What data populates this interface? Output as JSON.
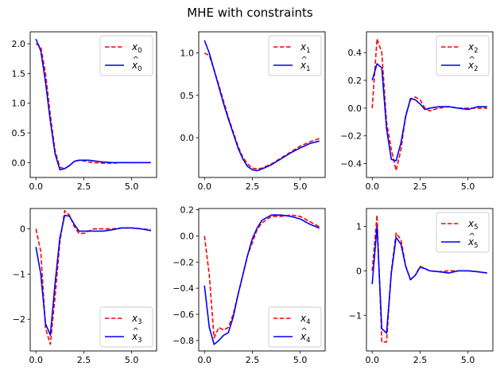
{
  "title": "MHE with constraints",
  "colors": {
    "true_state": "#ff0000",
    "estimate": "#0000ff",
    "axes": "#000000"
  },
  "chart_data": [
    {
      "type": "line",
      "legend": "top-right",
      "grid": false,
      "xlim": [
        -0.3,
        6.3
      ],
      "ylim": [
        -0.25,
        2.2
      ],
      "xticks": [
        0,
        2.5,
        5
      ],
      "xtick_labels": [
        "0.0",
        "2.5",
        "5.0"
      ],
      "yticks": [
        0,
        0.5,
        1,
        1.5,
        2
      ],
      "ytick_labels": [
        "0.0",
        "0.5",
        "1.0",
        "1.5",
        "2.0"
      ],
      "series": [
        {
          "name": "x_0",
          "legend_label": "x",
          "legend_sub": "0",
          "hat": false,
          "style": "dashed",
          "color": "#ff0000",
          "x": [
            0,
            0.25,
            0.5,
            0.75,
            1.0,
            1.25,
            1.5,
            1.75,
            2.0,
            2.25,
            2.5,
            2.75,
            3.0,
            3.5,
            4.0,
            4.5,
            5.0,
            5.5,
            6.0
          ],
          "y": [
            2.0,
            1.95,
            1.5,
            0.8,
            0.2,
            -0.08,
            -0.1,
            -0.05,
            0.02,
            0.04,
            0.03,
            0.01,
            0.0,
            -0.01,
            -0.01,
            0.0,
            0.0,
            0.0,
            0.0
          ]
        },
        {
          "name": "x_0_hat",
          "legend_label": "x",
          "legend_sub": "0",
          "hat": true,
          "style": "solid",
          "color": "#0000ff",
          "x": [
            0,
            0.25,
            0.5,
            0.75,
            1.0,
            1.25,
            1.5,
            1.75,
            2.0,
            2.25,
            2.5,
            2.75,
            3.0,
            3.5,
            4.0,
            4.5,
            5.0,
            5.5,
            6.0
          ],
          "y": [
            2.08,
            1.88,
            1.35,
            0.7,
            0.15,
            -0.12,
            -0.1,
            -0.05,
            0.02,
            0.04,
            0.04,
            0.04,
            0.03,
            0.01,
            0.0,
            0.0,
            0.0,
            0.0,
            0.0
          ]
        }
      ]
    },
    {
      "type": "line",
      "legend": "top-right",
      "grid": false,
      "xlim": [
        -0.3,
        6.3
      ],
      "ylim": [
        -0.47,
        1.25
      ],
      "xticks": [
        0,
        2.5,
        5
      ],
      "xtick_labels": [
        "0.0",
        "2.5",
        "5.0"
      ],
      "yticks": [
        0,
        0.5,
        1
      ],
      "ytick_labels": [
        "0.0",
        "0.5",
        "1.0"
      ],
      "series": [
        {
          "name": "x_1",
          "legend_label": "x",
          "legend_sub": "1",
          "hat": false,
          "style": "dashed",
          "color": "#ff0000",
          "x": [
            0,
            0.25,
            0.5,
            0.75,
            1.0,
            1.25,
            1.5,
            1.75,
            2.0,
            2.25,
            2.5,
            2.75,
            3.0,
            3.5,
            4.0,
            4.5,
            5.0,
            5.5,
            6.0
          ],
          "y": [
            1.0,
            0.97,
            0.8,
            0.62,
            0.43,
            0.24,
            0.07,
            -0.1,
            -0.23,
            -0.31,
            -0.36,
            -0.37,
            -0.36,
            -0.31,
            -0.24,
            -0.17,
            -0.1,
            -0.05,
            -0.01
          ]
        },
        {
          "name": "x_1_hat",
          "legend_label": "x",
          "legend_sub": "1",
          "hat": true,
          "style": "solid",
          "color": "#0000ff",
          "x": [
            0,
            0.25,
            0.5,
            0.75,
            1.0,
            1.25,
            1.5,
            1.75,
            2.0,
            2.25,
            2.5,
            2.75,
            3.0,
            3.5,
            4.0,
            4.5,
            5.0,
            5.5,
            6.0
          ],
          "y": [
            1.15,
            1.0,
            0.8,
            0.6,
            0.4,
            0.22,
            0.05,
            -0.12,
            -0.25,
            -0.34,
            -0.38,
            -0.39,
            -0.37,
            -0.32,
            -0.25,
            -0.18,
            -0.12,
            -0.07,
            -0.04
          ]
        }
      ]
    },
    {
      "type": "line",
      "legend": "top-right",
      "grid": false,
      "xlim": [
        -0.3,
        6.3
      ],
      "ylim": [
        -0.5,
        0.55
      ],
      "xticks": [
        0,
        2.5,
        5
      ],
      "xtick_labels": [
        "0.0",
        "2.5",
        "5.0"
      ],
      "yticks": [
        -0.4,
        -0.2,
        0,
        0.2,
        0.4
      ],
      "ytick_labels": [
        "−0.4",
        "−0.2",
        "0.0",
        "0.2",
        "0.4"
      ],
      "series": [
        {
          "name": "x_2",
          "legend_label": "x",
          "legend_sub": "2",
          "hat": false,
          "style": "dashed",
          "color": "#ff0000",
          "x": [
            0,
            0.25,
            0.5,
            0.75,
            1.0,
            1.25,
            1.5,
            1.75,
            2.0,
            2.25,
            2.5,
            2.75,
            3.0,
            3.5,
            4.0,
            4.5,
            5.0,
            5.5,
            6.0
          ],
          "y": [
            0.0,
            0.5,
            0.4,
            -0.1,
            -0.3,
            -0.45,
            -0.3,
            -0.05,
            0.06,
            0.08,
            0.06,
            0.0,
            -0.02,
            0.0,
            0.01,
            0.0,
            0.0,
            0.0,
            0.0
          ]
        },
        {
          "name": "x_2_hat",
          "legend_label": "x",
          "legend_sub": "2",
          "hat": true,
          "style": "solid",
          "color": "#0000ff",
          "x": [
            0,
            0.25,
            0.5,
            0.75,
            1.0,
            1.25,
            1.5,
            1.75,
            2.0,
            2.25,
            2.5,
            2.75,
            3.0,
            3.5,
            4.0,
            4.5,
            5.0,
            5.5,
            6.0
          ],
          "y": [
            0.2,
            0.32,
            0.29,
            -0.15,
            -0.37,
            -0.38,
            -0.25,
            -0.06,
            0.07,
            0.06,
            0.03,
            -0.01,
            0.0,
            0.01,
            0.01,
            0.0,
            -0.01,
            0.01,
            0.01
          ]
        }
      ]
    },
    {
      "type": "line",
      "legend": "lower-right",
      "grid": false,
      "xlim": [
        -0.3,
        6.3
      ],
      "ylim": [
        -2.7,
        0.45
      ],
      "xticks": [
        0,
        2.5,
        5
      ],
      "xtick_labels": [
        "0.0",
        "2.5",
        "5.0"
      ],
      "yticks": [
        -2,
        -1,
        0
      ],
      "ytick_labels": [
        "−2",
        "−1",
        "0"
      ],
      "series": [
        {
          "name": "x_3",
          "legend_label": "x",
          "legend_sub": "3",
          "hat": false,
          "style": "dashed",
          "color": "#ff0000",
          "x": [
            0,
            0.25,
            0.5,
            0.75,
            1.0,
            1.25,
            1.5,
            1.75,
            2.0,
            2.25,
            2.5,
            2.75,
            3.0,
            3.5,
            4.0,
            4.5,
            5.0,
            5.5,
            6.0
          ],
          "y": [
            0.0,
            -0.5,
            -2.2,
            -2.55,
            -1.5,
            -0.3,
            0.4,
            0.3,
            0.05,
            -0.1,
            -0.1,
            -0.05,
            0.0,
            0.0,
            0.0,
            0.02,
            0.02,
            0.0,
            -0.02
          ]
        },
        {
          "name": "x_3_hat",
          "legend_label": "x",
          "legend_sub": "3",
          "hat": true,
          "style": "solid",
          "color": "#0000ff",
          "x": [
            0,
            0.25,
            0.5,
            0.75,
            1.0,
            1.25,
            1.5,
            1.75,
            2.0,
            2.25,
            2.5,
            2.75,
            3.0,
            3.5,
            4.0,
            4.5,
            5.0,
            5.5,
            6.0
          ],
          "y": [
            -0.4,
            -1.0,
            -2.1,
            -2.35,
            -1.2,
            -0.2,
            0.3,
            0.28,
            0.1,
            -0.05,
            -0.05,
            -0.05,
            -0.05,
            -0.05,
            -0.02,
            0.02,
            0.02,
            0.0,
            -0.04
          ]
        }
      ]
    },
    {
      "type": "line",
      "legend": "lower-right",
      "grid": false,
      "xlim": [
        -0.3,
        6.3
      ],
      "ylim": [
        -0.88,
        0.21
      ],
      "xticks": [
        0,
        2.5,
        5
      ],
      "xtick_labels": [
        "0.0",
        "2.5",
        "5.0"
      ],
      "yticks": [
        -0.8,
        -0.6,
        -0.4,
        -0.2,
        0,
        0.2
      ],
      "ytick_labels": [
        "−0.8",
        "−0.6",
        "−0.4",
        "−0.2",
        "0.0",
        "0.2"
      ],
      "series": [
        {
          "name": "x_4",
          "legend_label": "x",
          "legend_sub": "4",
          "hat": false,
          "style": "dashed",
          "color": "#ff0000",
          "x": [
            0,
            0.25,
            0.5,
            0.75,
            1.0,
            1.25,
            1.5,
            1.75,
            2.0,
            2.25,
            2.5,
            2.75,
            3.0,
            3.5,
            4.0,
            4.5,
            5.0,
            5.5,
            6.0
          ],
          "y": [
            0.0,
            -0.3,
            -0.78,
            -0.7,
            -0.72,
            -0.7,
            -0.6,
            -0.45,
            -0.3,
            -0.15,
            -0.05,
            0.05,
            0.1,
            0.15,
            0.15,
            0.16,
            0.15,
            0.11,
            0.07
          ]
        },
        {
          "name": "x_4_hat",
          "legend_label": "x",
          "legend_sub": "4",
          "hat": true,
          "style": "solid",
          "color": "#0000ff",
          "x": [
            0,
            0.25,
            0.5,
            0.75,
            1.0,
            1.25,
            1.5,
            1.75,
            2.0,
            2.25,
            2.5,
            2.75,
            3.0,
            3.5,
            4.0,
            4.5,
            5.0,
            5.5,
            6.0
          ],
          "y": [
            -0.38,
            -0.7,
            -0.83,
            -0.8,
            -0.76,
            -0.74,
            -0.62,
            -0.45,
            -0.3,
            -0.15,
            -0.02,
            0.06,
            0.12,
            0.16,
            0.16,
            0.15,
            0.13,
            0.09,
            0.06
          ]
        }
      ]
    },
    {
      "type": "line",
      "legend": "top-right",
      "grid": false,
      "xlim": [
        -0.3,
        6.3
      ],
      "ylim": [
        -1.8,
        1.4
      ],
      "xticks": [
        0,
        2.5,
        5
      ],
      "xtick_labels": [
        "0.0",
        "2.5",
        "5.0"
      ],
      "yticks": [
        -1,
        0,
        1
      ],
      "ytick_labels": [
        "−1",
        "0",
        "1"
      ],
      "series": [
        {
          "name": "x_5",
          "legend_label": "x",
          "legend_sub": "5",
          "hat": false,
          "style": "dashed",
          "color": "#ff0000",
          "x": [
            0,
            0.25,
            0.5,
            0.75,
            1.0,
            1.25,
            1.5,
            1.75,
            2.0,
            2.25,
            2.5,
            2.75,
            3.0,
            3.5,
            4.0,
            4.5,
            5.0,
            5.5,
            6.0
          ],
          "y": [
            0.0,
            1.25,
            -1.6,
            -1.6,
            0.0,
            0.85,
            0.7,
            0.1,
            -0.2,
            -0.1,
            0.1,
            0.05,
            0.0,
            -0.02,
            0.0,
            0.0,
            0.0,
            -0.02,
            -0.05
          ]
        },
        {
          "name": "x_5_hat",
          "legend_label": "x",
          "legend_sub": "5",
          "hat": true,
          "style": "solid",
          "color": "#0000ff",
          "x": [
            0,
            0.25,
            0.5,
            0.75,
            1.0,
            1.25,
            1.5,
            1.75,
            2.0,
            2.25,
            2.5,
            2.75,
            3.0,
            3.5,
            4.0,
            4.5,
            5.0,
            5.5,
            6.0
          ],
          "y": [
            -0.3,
            1.0,
            -1.3,
            -1.4,
            -0.05,
            0.75,
            0.6,
            0.1,
            -0.2,
            -0.1,
            0.08,
            0.05,
            0.0,
            -0.02,
            -0.05,
            0.0,
            0.0,
            -0.02,
            -0.05
          ]
        }
      ]
    }
  ]
}
